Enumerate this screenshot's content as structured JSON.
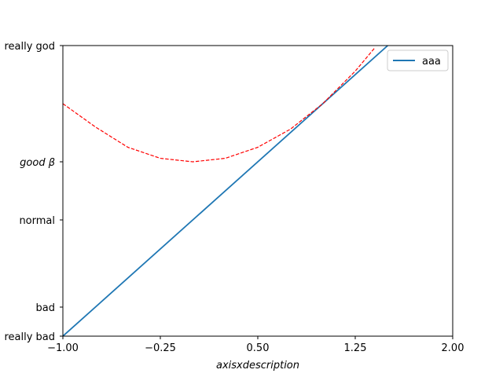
{
  "chart_data": {
    "type": "line",
    "xlabel": "axisxdescription",
    "xlim": [
      -1.0,
      2.0
    ],
    "ylim": [
      -2,
      3
    ],
    "x_ticks": [
      {
        "value": -1.0,
        "label": "−1.00"
      },
      {
        "value": -0.25,
        "label": "−0.25"
      },
      {
        "value": 0.5,
        "label": "0.50"
      },
      {
        "value": 1.25,
        "label": "1.25"
      },
      {
        "value": 2.0,
        "label": "2.00"
      }
    ],
    "y_ticks": [
      {
        "value": -2,
        "label": "really bad",
        "italic": false
      },
      {
        "value": -1.5,
        "label": "bad",
        "italic": false
      },
      {
        "value": 0,
        "label": "normal",
        "italic": false
      },
      {
        "value": 1,
        "label": "good β",
        "italic": true
      },
      {
        "value": 3,
        "label": "really god",
        "italic": false
      }
    ],
    "series": [
      {
        "name": "aaa",
        "color": "#1f77b4",
        "style": "solid",
        "x": [
          -1.0,
          1.5
        ],
        "y": [
          -2,
          3
        ]
      },
      {
        "name": "",
        "color": "#ff0000",
        "style": "dashed",
        "x": [
          -1.0,
          -0.75,
          -0.5,
          -0.25,
          0.0,
          0.25,
          0.5,
          0.75,
          1.0,
          1.25,
          1.4
        ],
        "y": [
          2.0,
          1.6,
          1.25,
          1.06,
          1.0,
          1.06,
          1.25,
          1.56,
          2.0,
          2.56,
          2.96
        ]
      }
    ],
    "legend": {
      "position": "top-right",
      "entries": [
        "aaa"
      ]
    },
    "grid": false
  }
}
